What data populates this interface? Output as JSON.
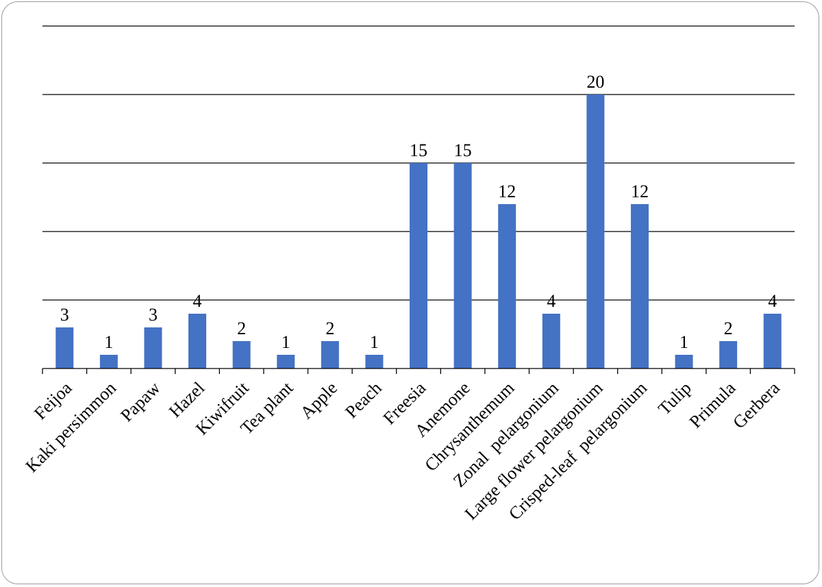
{
  "chart_data": {
    "type": "bar",
    "categories": [
      "Feijoa",
      "Kaki persimmon",
      "Papaw",
      "Hazel",
      "Kiwifruit",
      "Tea plant",
      "Apple",
      "Peach",
      "Freesia",
      "Anemone",
      "Chrysanthemum",
      "Zonal  pelargonium",
      "Large flower pelargonium",
      "Crisped-leaf  pelargonium",
      "Tulip",
      "Primula",
      "Gerbera"
    ],
    "values": [
      3,
      1,
      3,
      4,
      2,
      1,
      2,
      1,
      15,
      15,
      12,
      4,
      20,
      12,
      1,
      2,
      4
    ],
    "value_labels": [
      "3",
      "1",
      "3",
      "4",
      "2",
      "1",
      "2",
      "1",
      "15",
      "15",
      "12",
      "4",
      "20",
      "12",
      "1",
      "2",
      "4"
    ],
    "ylim": [
      0,
      25
    ],
    "grid": true,
    "bar_color": "#4472C4",
    "title": "",
    "xlabel": "",
    "ylabel": ""
  }
}
